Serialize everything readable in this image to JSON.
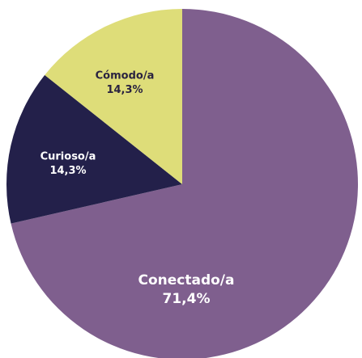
{
  "chart_data": {
    "type": "pie",
    "categories": [
      "Conectado/a",
      "Curioso/a",
      "Cómodo/a"
    ],
    "values": [
      71.4,
      14.3,
      14.3
    ],
    "value_labels": [
      "71,4%",
      "14,3%",
      "14,3%"
    ],
    "colors": [
      "#7f5f8e",
      "#23204a",
      "#dedd79"
    ]
  }
}
